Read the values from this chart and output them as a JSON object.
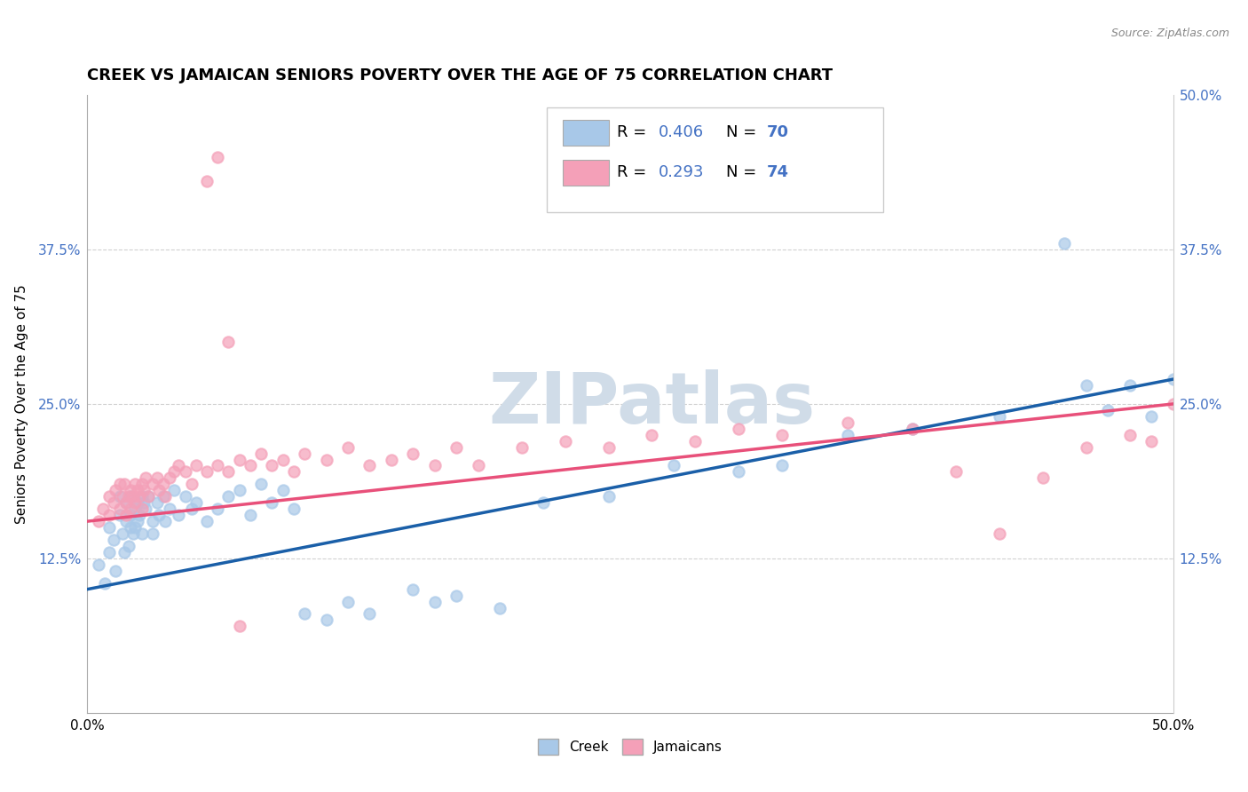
{
  "title": "CREEK VS JAMAICAN SENIORS POVERTY OVER THE AGE OF 75 CORRELATION CHART",
  "source": "Source: ZipAtlas.com",
  "ylabel": "Seniors Poverty Over the Age of 75",
  "xlim": [
    0,
    0.5
  ],
  "ylim": [
    0,
    0.5
  ],
  "creek_color": "#a8c8e8",
  "jamaican_color": "#f4a0b8",
  "trend_creek_color": "#1a5fa8",
  "trend_jamaican_color": "#e8507a",
  "creek_R": 0.406,
  "creek_N": 70,
  "jamaican_R": 0.293,
  "jamaican_N": 74,
  "tick_color": "#4472c4",
  "background_color": "#ffffff",
  "grid_color": "#cccccc",
  "title_fontsize": 13,
  "axis_label_fontsize": 11,
  "tick_fontsize": 11,
  "watermark": "ZIPatlas",
  "watermark_color": "#d0dce8",
  "watermark_fontsize": 58,
  "creek_x": [
    0.005,
    0.008,
    0.01,
    0.01,
    0.012,
    0.013,
    0.015,
    0.015,
    0.016,
    0.017,
    0.018,
    0.018,
    0.019,
    0.02,
    0.02,
    0.02,
    0.021,
    0.022,
    0.022,
    0.023,
    0.023,
    0.024,
    0.025,
    0.025,
    0.026,
    0.027,
    0.028,
    0.03,
    0.03,
    0.032,
    0.033,
    0.035,
    0.036,
    0.038,
    0.04,
    0.042,
    0.045,
    0.048,
    0.05,
    0.055,
    0.06,
    0.065,
    0.07,
    0.075,
    0.08,
    0.085,
    0.09,
    0.095,
    0.1,
    0.11,
    0.12,
    0.13,
    0.15,
    0.16,
    0.17,
    0.19,
    0.21,
    0.24,
    0.27,
    0.3,
    0.32,
    0.35,
    0.38,
    0.42,
    0.45,
    0.46,
    0.47,
    0.48,
    0.49,
    0.5
  ],
  "creek_y": [
    0.12,
    0.105,
    0.15,
    0.13,
    0.14,
    0.115,
    0.16,
    0.175,
    0.145,
    0.13,
    0.155,
    0.17,
    0.135,
    0.15,
    0.16,
    0.175,
    0.145,
    0.165,
    0.15,
    0.17,
    0.155,
    0.16,
    0.175,
    0.145,
    0.17,
    0.165,
    0.175,
    0.155,
    0.145,
    0.17,
    0.16,
    0.175,
    0.155,
    0.165,
    0.18,
    0.16,
    0.175,
    0.165,
    0.17,
    0.155,
    0.165,
    0.175,
    0.18,
    0.16,
    0.185,
    0.17,
    0.18,
    0.165,
    0.08,
    0.075,
    0.09,
    0.08,
    0.1,
    0.09,
    0.095,
    0.085,
    0.17,
    0.175,
    0.2,
    0.195,
    0.2,
    0.225,
    0.23,
    0.24,
    0.38,
    0.265,
    0.245,
    0.265,
    0.24,
    0.27
  ],
  "jamaican_x": [
    0.005,
    0.007,
    0.01,
    0.01,
    0.012,
    0.013,
    0.015,
    0.015,
    0.016,
    0.017,
    0.018,
    0.018,
    0.019,
    0.02,
    0.02,
    0.021,
    0.022,
    0.022,
    0.023,
    0.024,
    0.025,
    0.025,
    0.026,
    0.027,
    0.028,
    0.03,
    0.032,
    0.033,
    0.035,
    0.036,
    0.038,
    0.04,
    0.042,
    0.045,
    0.048,
    0.05,
    0.055,
    0.06,
    0.065,
    0.07,
    0.075,
    0.08,
    0.085,
    0.09,
    0.095,
    0.1,
    0.11,
    0.12,
    0.13,
    0.14,
    0.15,
    0.16,
    0.17,
    0.18,
    0.2,
    0.22,
    0.24,
    0.26,
    0.28,
    0.3,
    0.32,
    0.35,
    0.38,
    0.4,
    0.42,
    0.44,
    0.46,
    0.48,
    0.49,
    0.5,
    0.055,
    0.06,
    0.065,
    0.07
  ],
  "jamaican_y": [
    0.155,
    0.165,
    0.175,
    0.16,
    0.17,
    0.18,
    0.185,
    0.165,
    0.175,
    0.185,
    0.17,
    0.16,
    0.175,
    0.18,
    0.165,
    0.175,
    0.185,
    0.17,
    0.18,
    0.175,
    0.185,
    0.165,
    0.18,
    0.19,
    0.175,
    0.185,
    0.19,
    0.18,
    0.185,
    0.175,
    0.19,
    0.195,
    0.2,
    0.195,
    0.185,
    0.2,
    0.195,
    0.2,
    0.195,
    0.205,
    0.2,
    0.21,
    0.2,
    0.205,
    0.195,
    0.21,
    0.205,
    0.215,
    0.2,
    0.205,
    0.21,
    0.2,
    0.215,
    0.2,
    0.215,
    0.22,
    0.215,
    0.225,
    0.22,
    0.23,
    0.225,
    0.235,
    0.23,
    0.195,
    0.145,
    0.19,
    0.215,
    0.225,
    0.22,
    0.25,
    0.43,
    0.45,
    0.3,
    0.07
  ],
  "creek_trend_x0": 0.0,
  "creek_trend_y0": 0.1,
  "creek_trend_x1": 0.5,
  "creek_trend_y1": 0.27,
  "jam_trend_x0": 0.0,
  "jam_trend_y0": 0.155,
  "jam_trend_x1": 0.5,
  "jam_trend_y1": 0.25
}
